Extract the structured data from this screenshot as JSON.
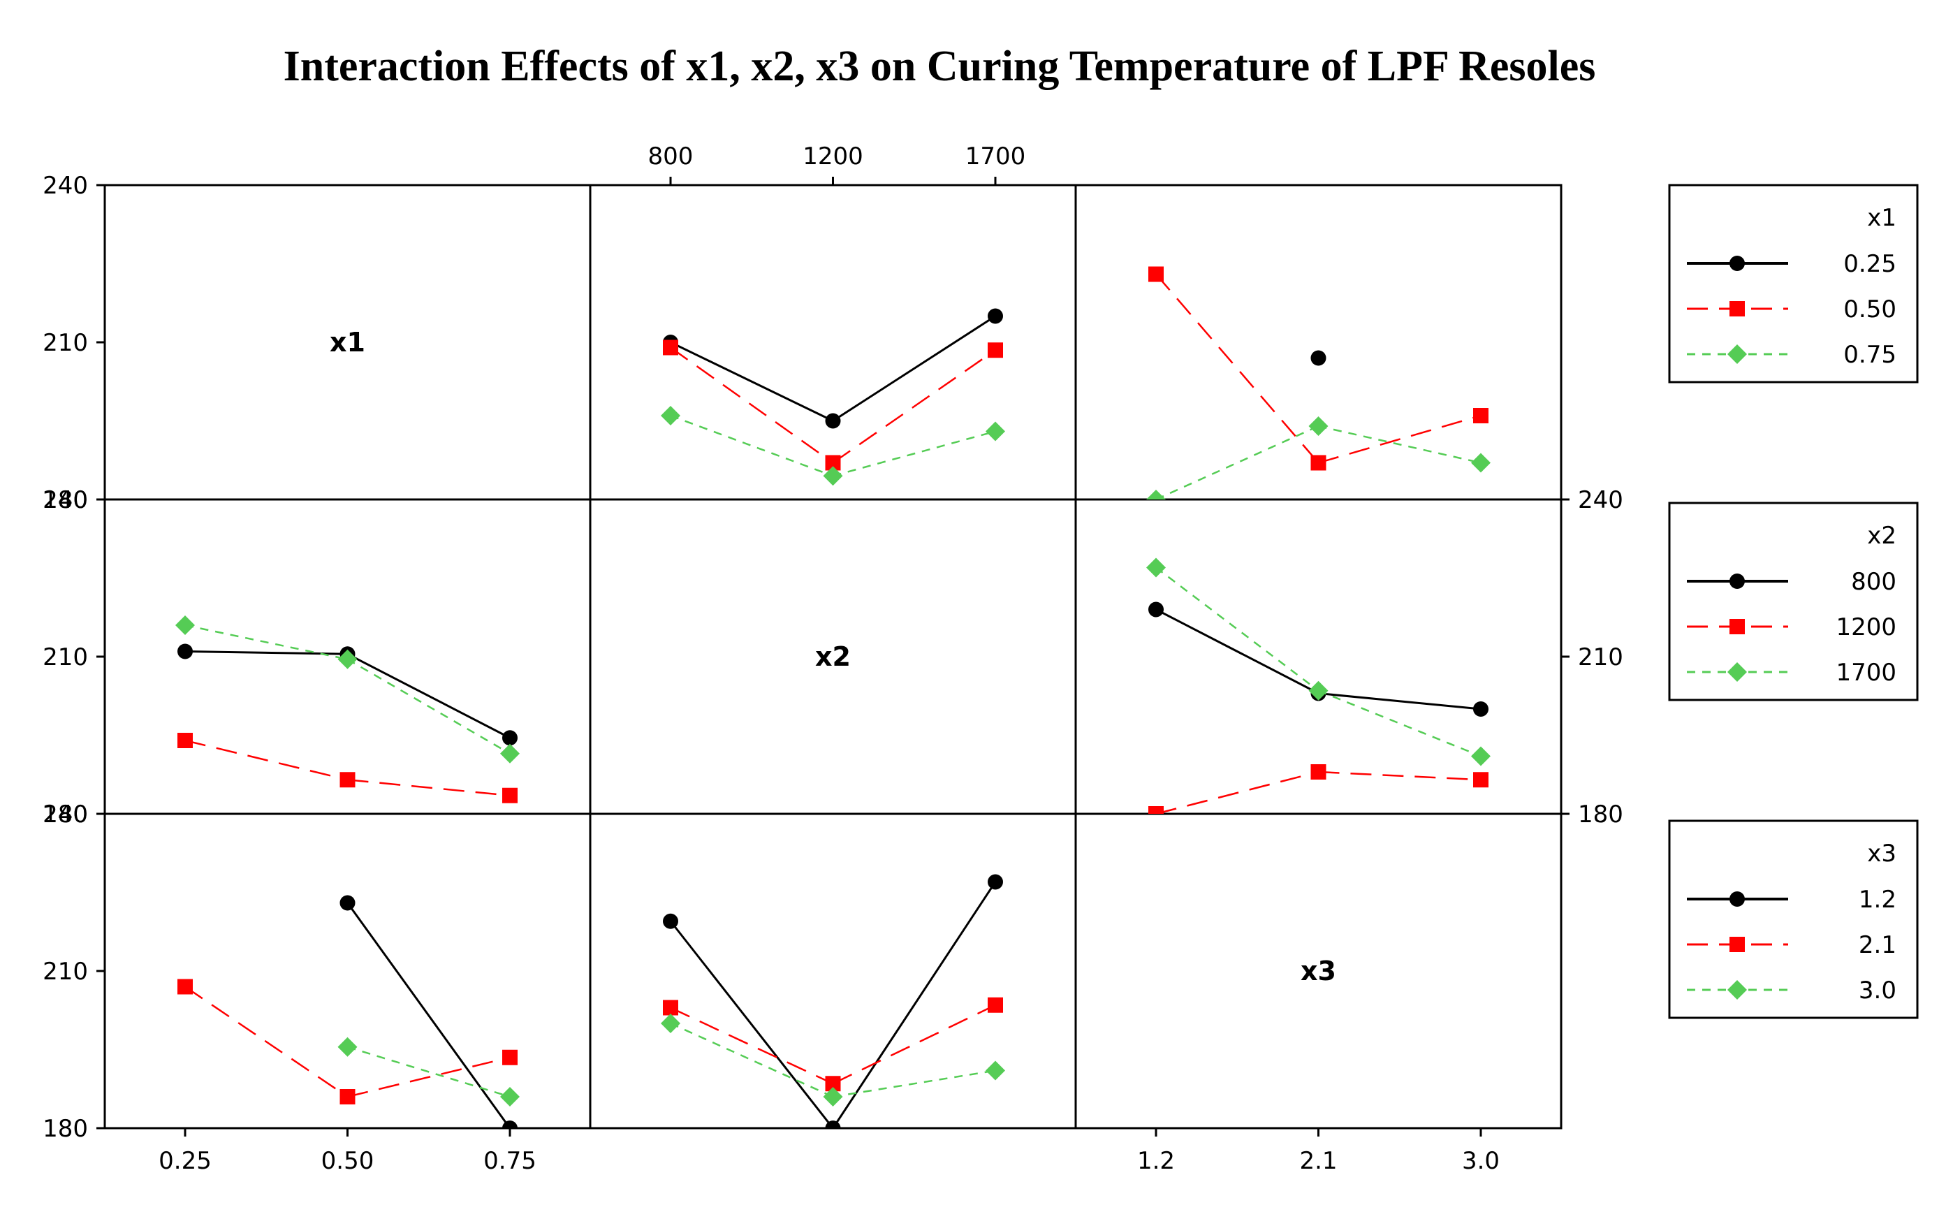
{
  "chart_data": {
    "type": "line",
    "title": "Interaction Effects of x1, x2, x3 on Curing Temperature of LPF Resoles",
    "ylim": [
      180,
      240
    ],
    "yticks": [
      "180",
      "210",
      "240"
    ],
    "factors": [
      {
        "name": "x1",
        "levels": [
          0.25,
          0.5,
          0.75
        ],
        "labels": [
          "0.25",
          "0.50",
          "0.75"
        ],
        "legend": [
          "0.25",
          "0.50",
          "0.75"
        ]
      },
      {
        "name": "x2",
        "levels": [
          800,
          1200,
          1700
        ],
        "labels": [
          "800",
          "1200",
          "1700"
        ],
        "legend": [
          "800",
          "1200",
          "1700"
        ]
      },
      {
        "name": "x3",
        "levels": [
          1.2,
          2.1,
          3.0
        ],
        "labels": [
          "1.2",
          "2.1",
          "3.0"
        ],
        "legend": [
          "1.2",
          "2.1",
          "3.0"
        ]
      }
    ],
    "series_style": {
      "colors": [
        "#000000",
        "#ff0000",
        "#55cc55"
      ],
      "markers": [
        "circle",
        "square",
        "diamond"
      ],
      "dash": [
        "solid",
        "long-dash",
        "short-dash"
      ]
    },
    "panels": [
      {
        "row": 0,
        "col": 1,
        "x_factor": "x2",
        "trace_factor": "x1",
        "series": [
          {
            "name": "0.25",
            "values": [
              210,
              195,
              215
            ]
          },
          {
            "name": "0.50",
            "values": [
              209,
              187,
              208.5
            ]
          },
          {
            "name": "0.75",
            "values": [
              196,
              184.5,
              193
            ]
          }
        ]
      },
      {
        "row": 0,
        "col": 2,
        "x_factor": "x3",
        "trace_factor": "x1",
        "series": [
          {
            "name": "0.25",
            "values": [
              null,
              207,
              null
            ]
          },
          {
            "name": "0.50",
            "values": [
              223,
              187,
              196
            ]
          },
          {
            "name": "0.75",
            "values": [
              180,
              194,
              187
            ]
          }
        ]
      },
      {
        "row": 1,
        "col": 0,
        "x_factor": "x1",
        "trace_factor": "x2",
        "series": [
          {
            "name": "800",
            "values": [
              211,
              210.5,
              194.5
            ]
          },
          {
            "name": "1200",
            "values": [
              194,
              186.5,
              183.5
            ]
          },
          {
            "name": "1700",
            "values": [
              216,
              209.5,
              191.5
            ]
          }
        ]
      },
      {
        "row": 1,
        "col": 2,
        "x_factor": "x3",
        "trace_factor": "x2",
        "series": [
          {
            "name": "800",
            "values": [
              219,
              203,
              200
            ]
          },
          {
            "name": "1200",
            "values": [
              180,
              188,
              186.5
            ]
          },
          {
            "name": "1700",
            "values": [
              227,
              203.5,
              191
            ]
          }
        ]
      },
      {
        "row": 2,
        "col": 0,
        "x_factor": "x1",
        "trace_factor": "x3",
        "series": [
          {
            "name": "1.2",
            "values": [
              null,
              223,
              180
            ]
          },
          {
            "name": "2.1",
            "values": [
              207,
              186,
              193.5
            ]
          },
          {
            "name": "3.0",
            "values": [
              null,
              195.5,
              186
            ]
          }
        ]
      },
      {
        "row": 2,
        "col": 1,
        "x_factor": "x2",
        "trace_factor": "x3",
        "series": [
          {
            "name": "1.2",
            "values": [
              219.5,
              180,
              227
            ]
          },
          {
            "name": "2.1",
            "values": [
              203,
              188.5,
              203.5
            ]
          },
          {
            "name": "3.0",
            "values": [
              200,
              186,
              191
            ]
          }
        ]
      }
    ]
  }
}
